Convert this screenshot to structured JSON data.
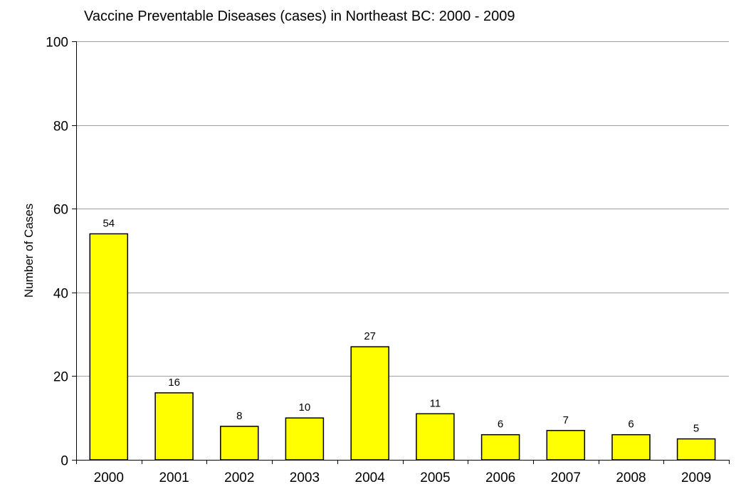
{
  "chart_data": {
    "type": "bar",
    "title": "Vaccine Preventable Diseases (cases) in Northeast BC: 2000 - 2009",
    "xlabel": "",
    "ylabel": "Number of Cases",
    "categories": [
      "2000",
      "2001",
      "2002",
      "2003",
      "2004",
      "2005",
      "2006",
      "2007",
      "2008",
      "2009"
    ],
    "values": [
      54,
      16,
      8,
      10,
      27,
      11,
      6,
      7,
      6,
      5
    ],
    "ylim": [
      0,
      100
    ],
    "yticks": [
      0,
      20,
      40,
      60,
      80,
      100
    ],
    "grid": true,
    "data_labels": true,
    "legend": "none",
    "bar_color": "#FFFF00",
    "bar_edge_color": "#000000",
    "grid_color": "#A0A0A0"
  }
}
